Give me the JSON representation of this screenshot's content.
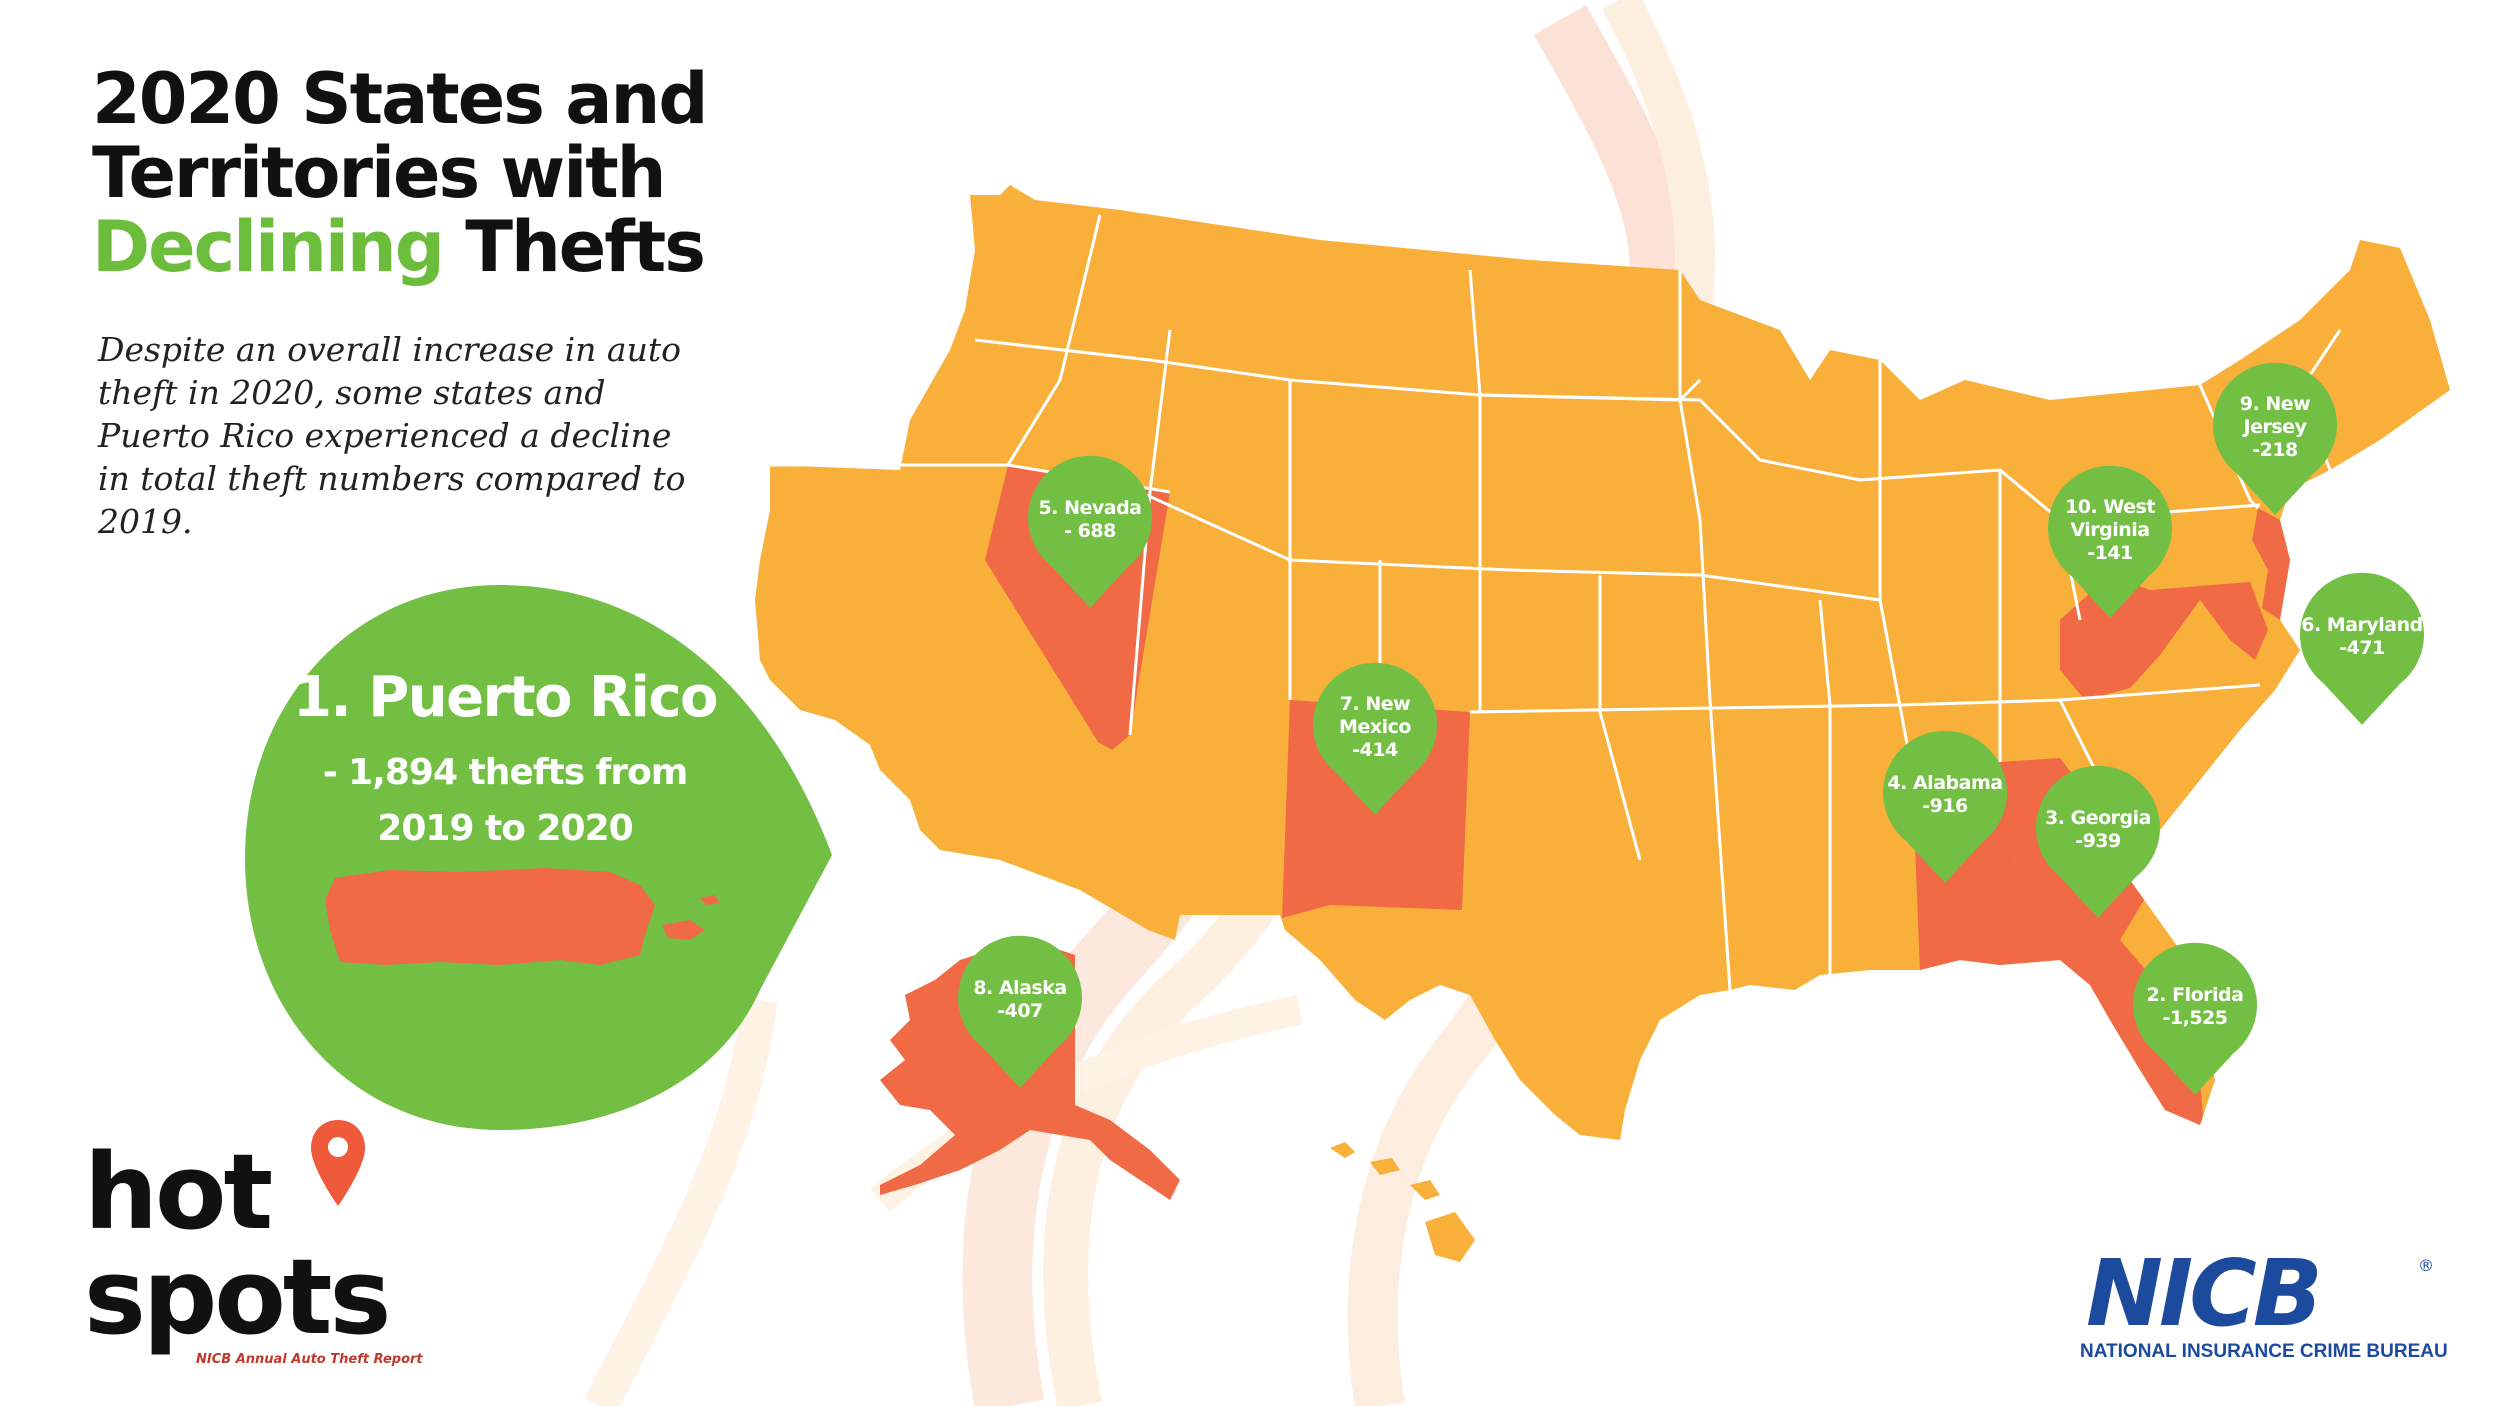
{
  "title": {
    "line1": "2020 States and",
    "line2": "Territories with",
    "highlight": "Declining",
    "line3_rest": "Thefts"
  },
  "subtitle": "Despite an overall increase in auto theft in 2020, some states and Puerto Rico experienced a decline in total theft numbers compared to 2019.",
  "puerto_rico": {
    "title": "1. Puerto Rico",
    "line1": "- 1,894 thefts from",
    "line2": "2019 to 2020"
  },
  "markers": [
    {
      "rank": 2,
      "lines": [
        "2. Florida",
        "-1,525"
      ]
    },
    {
      "rank": 3,
      "lines": [
        "3. Georgia",
        "-939"
      ]
    },
    {
      "rank": 4,
      "lines": [
        "4. Alabama",
        "-916"
      ]
    },
    {
      "rank": 5,
      "lines": [
        "5. Nevada",
        "- 688"
      ]
    },
    {
      "rank": 6,
      "lines": [
        "6. Maryland",
        "-471"
      ]
    },
    {
      "rank": 7,
      "lines": [
        "7. New",
        "Mexico",
        "-414"
      ]
    },
    {
      "rank": 8,
      "lines": [
        "8. Alaska",
        "-407"
      ]
    },
    {
      "rank": 9,
      "lines": [
        "9. New",
        "Jersey",
        "-218"
      ]
    },
    {
      "rank": 10,
      "lines": [
        "10. West",
        "Virginia",
        "-141"
      ]
    }
  ],
  "logo_hotspots": {
    "word1": "hot",
    "word2": "spots",
    "tagline": "NICB Annual Auto Theft Report"
  },
  "logo_nicb": {
    "mark": "NICB",
    "registered": "®",
    "name": "NATIONAL INSURANCE CRIME BUREAU"
  },
  "colors": {
    "state_default": "#f8b03b",
    "state_declining": "#ef6a45",
    "pin_green": "#73bf43",
    "highlight_green": "#6cbd3b",
    "nicb_blue": "#1c4a9c"
  },
  "icons": {
    "map_pin": "location-pin-icon",
    "hotspots_pin": "hotspots-pin-icon"
  }
}
